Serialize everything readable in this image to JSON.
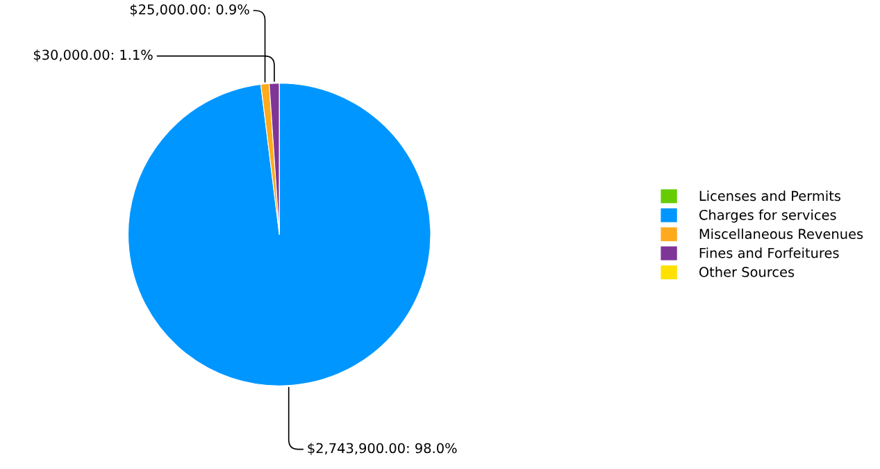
{
  "chart_data": {
    "type": "pie",
    "categories": [
      "Licenses and Permits",
      "Charges for services",
      "Miscellaneous Revenues",
      "Fines and Forfeitures",
      "Other Sources"
    ],
    "values": [
      0,
      2743900,
      25000,
      30000,
      0
    ],
    "colors": [
      "#66cc00",
      "#0096ff",
      "#ffaa1d",
      "#7f3598",
      "#ffe100"
    ],
    "value_labels": [
      null,
      "$2,743,900.00: 98.0%",
      "$25,000.00: 0.9%",
      "$30,000.00: 1.1%",
      null
    ],
    "legend": "right"
  }
}
